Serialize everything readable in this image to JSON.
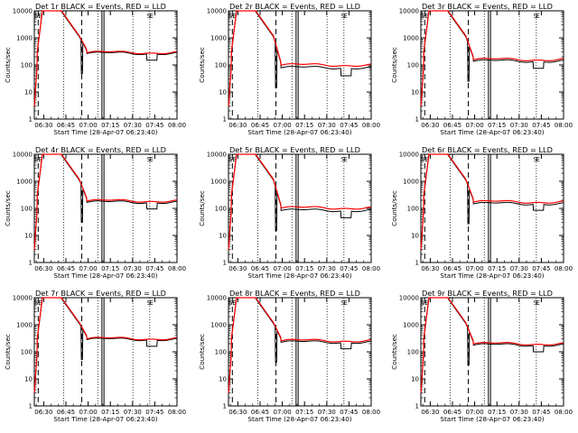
{
  "chart_data": [
    {
      "type": "line",
      "title": "Det 1r BLACK = Events, RED = LLD",
      "ylabel": "Counts/sec",
      "xlabel": "Start Time (28-Apr-07 06:23:40)",
      "yscale": "log",
      "ylim": [
        1,
        10000
      ],
      "xticks": [
        "06:30",
        "06:45",
        "07:00",
        "07:15",
        "07:30",
        "07:45",
        "08:00"
      ],
      "yticks": [
        "1",
        "10",
        "100",
        "1000",
        "10000"
      ],
      "series": [
        {
          "name": "Events",
          "color": "#000000",
          "plateau": 270,
          "dip_depth": 150
        },
        {
          "name": "LLD",
          "color": "#ff0000",
          "plateau": 290
        }
      ],
      "vline_labels": [
        "S",
        "E",
        "S",
        "E"
      ]
    },
    {
      "type": "line",
      "title": "Det 2r BLACK = Events, RED = LLD",
      "ylabel": "Counts/sec",
      "xlabel": "Start Time (28-Apr-07 06:23:40)",
      "yscale": "log",
      "ylim": [
        1,
        10000
      ],
      "xticks": [
        "06:30",
        "06:45",
        "07:00",
        "07:15",
        "07:30",
        "07:45",
        "08:00"
      ],
      "yticks": [
        "1",
        "10",
        "100",
        "1000",
        "10000"
      ],
      "series": [
        {
          "name": "Events",
          "color": "#000000",
          "plateau": 80,
          "dip_depth": 40
        },
        {
          "name": "LLD",
          "color": "#ff0000",
          "plateau": 100
        }
      ],
      "vline_labels": [
        "S",
        "E",
        "S",
        "E"
      ]
    },
    {
      "type": "line",
      "title": "Det 3r BLACK = Events, RED = LLD",
      "ylabel": "Counts/sec",
      "xlabel": "Start Time (28-Apr-07 06:23:40)",
      "yscale": "log",
      "ylim": [
        1,
        10000
      ],
      "xticks": [
        "06:30",
        "06:45",
        "07:00",
        "07:15",
        "07:30",
        "07:45",
        "08:00"
      ],
      "yticks": [
        "1",
        "10",
        "100",
        "1000",
        "10000"
      ],
      "series": [
        {
          "name": "Events",
          "color": "#000000",
          "plateau": 140,
          "dip_depth": 75
        },
        {
          "name": "LLD",
          "color": "#ff0000",
          "plateau": 160
        }
      ],
      "vline_labels": [
        "S",
        "E",
        "S",
        "E"
      ]
    },
    {
      "type": "line",
      "title": "Det 4r BLACK = Events, RED = LLD",
      "ylabel": "Counts/sec",
      "xlabel": "Start Time (28-Apr-07 06:23:40)",
      "yscale": "log",
      "ylim": [
        1,
        10000
      ],
      "xticks": [
        "06:30",
        "06:45",
        "07:00",
        "07:15",
        "07:30",
        "07:45",
        "08:00"
      ],
      "yticks": [
        "1",
        "10",
        "100",
        "1000",
        "10000"
      ],
      "series": [
        {
          "name": "Events",
          "color": "#000000",
          "plateau": 170,
          "dip_depth": 95
        },
        {
          "name": "LLD",
          "color": "#ff0000",
          "plateau": 190
        }
      ],
      "vline_labels": [
        "S",
        "E",
        "S",
        "E"
      ]
    },
    {
      "type": "line",
      "title": "Det 5r BLACK = Events, RED = LLD",
      "ylabel": "Counts/sec",
      "xlabel": "Start Time (28-Apr-07 06:23:40)",
      "yscale": "log",
      "ylim": [
        1,
        10000
      ],
      "xticks": [
        "06:30",
        "06:45",
        "07:00",
        "07:15",
        "07:30",
        "07:45",
        "08:00"
      ],
      "yticks": [
        "1",
        "10",
        "100",
        "1000",
        "10000"
      ],
      "series": [
        {
          "name": "Events",
          "color": "#000000",
          "plateau": 85,
          "dip_depth": 45
        },
        {
          "name": "LLD",
          "color": "#ff0000",
          "plateau": 105
        }
      ],
      "vline_labels": [
        "S",
        "E",
        "S",
        "E"
      ]
    },
    {
      "type": "line",
      "title": "Det 6r BLACK = Events, RED = LLD",
      "ylabel": "Counts/sec",
      "xlabel": "Start Time (28-Apr-07 06:23:40)",
      "yscale": "log",
      "ylim": [
        1,
        10000
      ],
      "xticks": [
        "06:30",
        "06:45",
        "07:00",
        "07:15",
        "07:30",
        "07:45",
        "08:00"
      ],
      "yticks": [
        "1",
        "10",
        "100",
        "1000",
        "10000"
      ],
      "series": [
        {
          "name": "Events",
          "color": "#000000",
          "plateau": 150,
          "dip_depth": 85
        },
        {
          "name": "LLD",
          "color": "#ff0000",
          "plateau": 175
        }
      ],
      "vline_labels": [
        "S",
        "E",
        "S",
        "E"
      ]
    },
    {
      "type": "line",
      "title": "Det 7r BLACK = Events, RED = LLD",
      "ylabel": "Counts/sec",
      "xlabel": "Start Time (28-Apr-07 06:23:40)",
      "yscale": "log",
      "ylim": [
        1,
        10000
      ],
      "xticks": [
        "06:30",
        "06:45",
        "07:00",
        "07:15",
        "07:30",
        "07:45",
        "08:00"
      ],
      "yticks": [
        "1",
        "10",
        "100",
        "1000",
        "10000"
      ],
      "series": [
        {
          "name": "Events",
          "color": "#000000",
          "plateau": 290,
          "dip_depth": 160
        },
        {
          "name": "LLD",
          "color": "#ff0000",
          "plateau": 310
        }
      ],
      "vline_labels": [
        "S",
        "E",
        "S",
        "E"
      ]
    },
    {
      "type": "line",
      "title": "Det 8r BLACK = Events, RED = LLD",
      "ylabel": "Counts/sec",
      "xlabel": "Start Time (28-Apr-07 06:23:40)",
      "yscale": "log",
      "ylim": [
        1,
        10000
      ],
      "xticks": [
        "06:30",
        "06:45",
        "07:00",
        "07:15",
        "07:30",
        "07:45",
        "08:00"
      ],
      "yticks": [
        "1",
        "10",
        "100",
        "1000",
        "10000"
      ],
      "series": [
        {
          "name": "Events",
          "color": "#000000",
          "plateau": 230,
          "dip_depth": 130
        },
        {
          "name": "LLD",
          "color": "#ff0000",
          "plateau": 260
        }
      ],
      "vline_labels": [
        "S",
        "E",
        "S",
        "E"
      ]
    },
    {
      "type": "line",
      "title": "Det 9r BLACK = Events, RED = LLD",
      "ylabel": "Counts/sec",
      "xlabel": "Start Time (28-Apr-07 06:23:40)",
      "yscale": "log",
      "ylim": [
        1,
        10000
      ],
      "xticks": [
        "06:30",
        "06:45",
        "07:00",
        "07:15",
        "07:30",
        "07:45",
        "08:00"
      ],
      "yticks": [
        "1",
        "10",
        "100",
        "1000",
        "10000"
      ],
      "series": [
        {
          "name": "Events",
          "color": "#000000",
          "plateau": 180,
          "dip_depth": 100
        },
        {
          "name": "LLD",
          "color": "#ff0000",
          "plateau": 200
        }
      ],
      "vline_labels": [
        "S",
        "E",
        "S",
        "E"
      ]
    }
  ]
}
